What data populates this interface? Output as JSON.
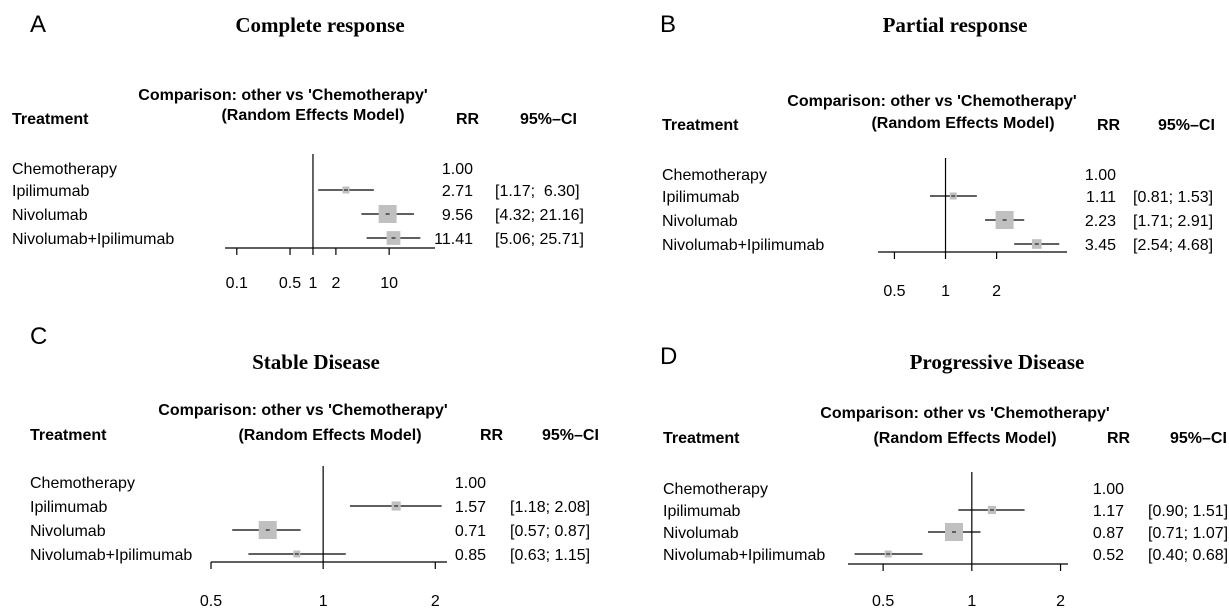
{
  "chart_data": [
    {
      "type": "forest",
      "panel_letter": "A",
      "title": "Complete response",
      "comparison_line1": "Comparison: other vs 'Chemotherapy'",
      "comparison_line2": "(Random Effects Model)",
      "treatment_header": "Treatment",
      "rr_header": "RR",
      "ci_header": "95%–CI",
      "scale": "log",
      "xlim": [
        0.07,
        40
      ],
      "xticks": [
        0.1,
        0.5,
        1,
        2,
        10
      ],
      "xtick_labels": [
        "0.1",
        "0.5",
        "1",
        "2",
        "10"
      ],
      "rows": [
        {
          "treatment": "Chemotherapy",
          "rr": 1.0,
          "lower": null,
          "upper": null,
          "rr_text": "1.00",
          "ci_text": ""
        },
        {
          "treatment": "Ipilimumab",
          "rr": 2.71,
          "lower": 1.17,
          "upper": 6.3,
          "rr_text": "2.71",
          "ci_text": "[1.17;  6.30]"
        },
        {
          "treatment": "Nivolumab",
          "rr": 9.56,
          "lower": 4.32,
          "upper": 21.16,
          "rr_text": "9.56",
          "ci_text": "[4.32; 21.16]"
        },
        {
          "treatment": "Nivolumab+Ipilimumab",
          "rr": 11.41,
          "lower": 5.06,
          "upper": 25.71,
          "rr_text": "11.41",
          "ci_text": "[5.06; 25.71]"
        }
      ]
    },
    {
      "type": "forest",
      "panel_letter": "B",
      "title": "Partial response",
      "comparison_line1": "Comparison: other vs 'Chemotherapy'",
      "comparison_line2": "(Random Effects Model)",
      "treatment_header": "Treatment",
      "rr_header": "RR",
      "ci_header": "95%–CI",
      "scale": "log",
      "xlim": [
        0.4,
        5.2
      ],
      "xticks": [
        0.5,
        1,
        2
      ],
      "xtick_labels": [
        "0.5",
        "1",
        "2"
      ],
      "rows": [
        {
          "treatment": "Chemotherapy",
          "rr": 1.0,
          "lower": null,
          "upper": null,
          "rr_text": "1.00",
          "ci_text": ""
        },
        {
          "treatment": "Ipilimumab",
          "rr": 1.11,
          "lower": 0.81,
          "upper": 1.53,
          "rr_text": "1.11",
          "ci_text": "[0.81; 1.53]"
        },
        {
          "treatment": "Nivolumab",
          "rr": 2.23,
          "lower": 1.71,
          "upper": 2.91,
          "rr_text": "2.23",
          "ci_text": "[1.71; 2.91]"
        },
        {
          "treatment": "Nivolumab+Ipilimumab",
          "rr": 3.45,
          "lower": 2.54,
          "upper": 4.68,
          "rr_text": "3.45",
          "ci_text": "[2.54; 4.68]"
        }
      ]
    },
    {
      "type": "forest",
      "panel_letter": "C",
      "title": "Stable Disease",
      "comparison_line1": "Comparison: other vs 'Chemotherapy'",
      "comparison_line2": "(Random Effects Model)",
      "treatment_header": "Treatment",
      "rr_header": "RR",
      "ci_header": "95%–CI",
      "scale": "log",
      "xlim": [
        0.5,
        2.15
      ],
      "xticks": [
        0.5,
        1,
        2
      ],
      "xtick_labels": [
        "0.5",
        "1",
        "2"
      ],
      "rows": [
        {
          "treatment": "Chemotherapy",
          "rr": 1.0,
          "lower": null,
          "upper": null,
          "rr_text": "1.00",
          "ci_text": ""
        },
        {
          "treatment": "Ipilimumab",
          "rr": 1.57,
          "lower": 1.18,
          "upper": 2.08,
          "rr_text": "1.57",
          "ci_text": "[1.18; 2.08]"
        },
        {
          "treatment": "Nivolumab",
          "rr": 0.71,
          "lower": 0.57,
          "upper": 0.87,
          "rr_text": "0.71",
          "ci_text": "[0.57; 0.87]"
        },
        {
          "treatment": "Nivolumab+Ipilimumab",
          "rr": 0.85,
          "lower": 0.63,
          "upper": 1.15,
          "rr_text": "0.85",
          "ci_text": "[0.63; 1.15]"
        }
      ]
    },
    {
      "type": "forest",
      "panel_letter": "D",
      "title": "Progressive Disease",
      "comparison_line1": "Comparison: other vs 'Chemotherapy'",
      "comparison_line2": "(Random Effects Model)",
      "treatment_header": "Treatment",
      "rr_header": "RR",
      "ci_header": "95%–CI",
      "scale": "log",
      "xlim": [
        0.38,
        2.12
      ],
      "xticks": [
        0.5,
        1,
        2
      ],
      "xtick_labels": [
        "0.5",
        "1",
        "2"
      ],
      "rows": [
        {
          "treatment": "Chemotherapy",
          "rr": 1.0,
          "lower": null,
          "upper": null,
          "rr_text": "1.00",
          "ci_text": ""
        },
        {
          "treatment": "Ipilimumab",
          "rr": 1.17,
          "lower": 0.9,
          "upper": 1.51,
          "rr_text": "1.17",
          "ci_text": "[0.90; 1.51]"
        },
        {
          "treatment": "Nivolumab",
          "rr": 0.87,
          "lower": 0.71,
          "upper": 1.07,
          "rr_text": "0.87",
          "ci_text": "[0.71; 1.07]"
        },
        {
          "treatment": "Nivolumab+Ipilimumab",
          "rr": 0.52,
          "lower": 0.4,
          "upper": 0.68,
          "rr_text": "0.52",
          "ci_text": "[0.40; 0.68]"
        }
      ]
    }
  ],
  "colors": {
    "square": "#c0c0c0",
    "line": "#000000",
    "text": "#000000"
  }
}
